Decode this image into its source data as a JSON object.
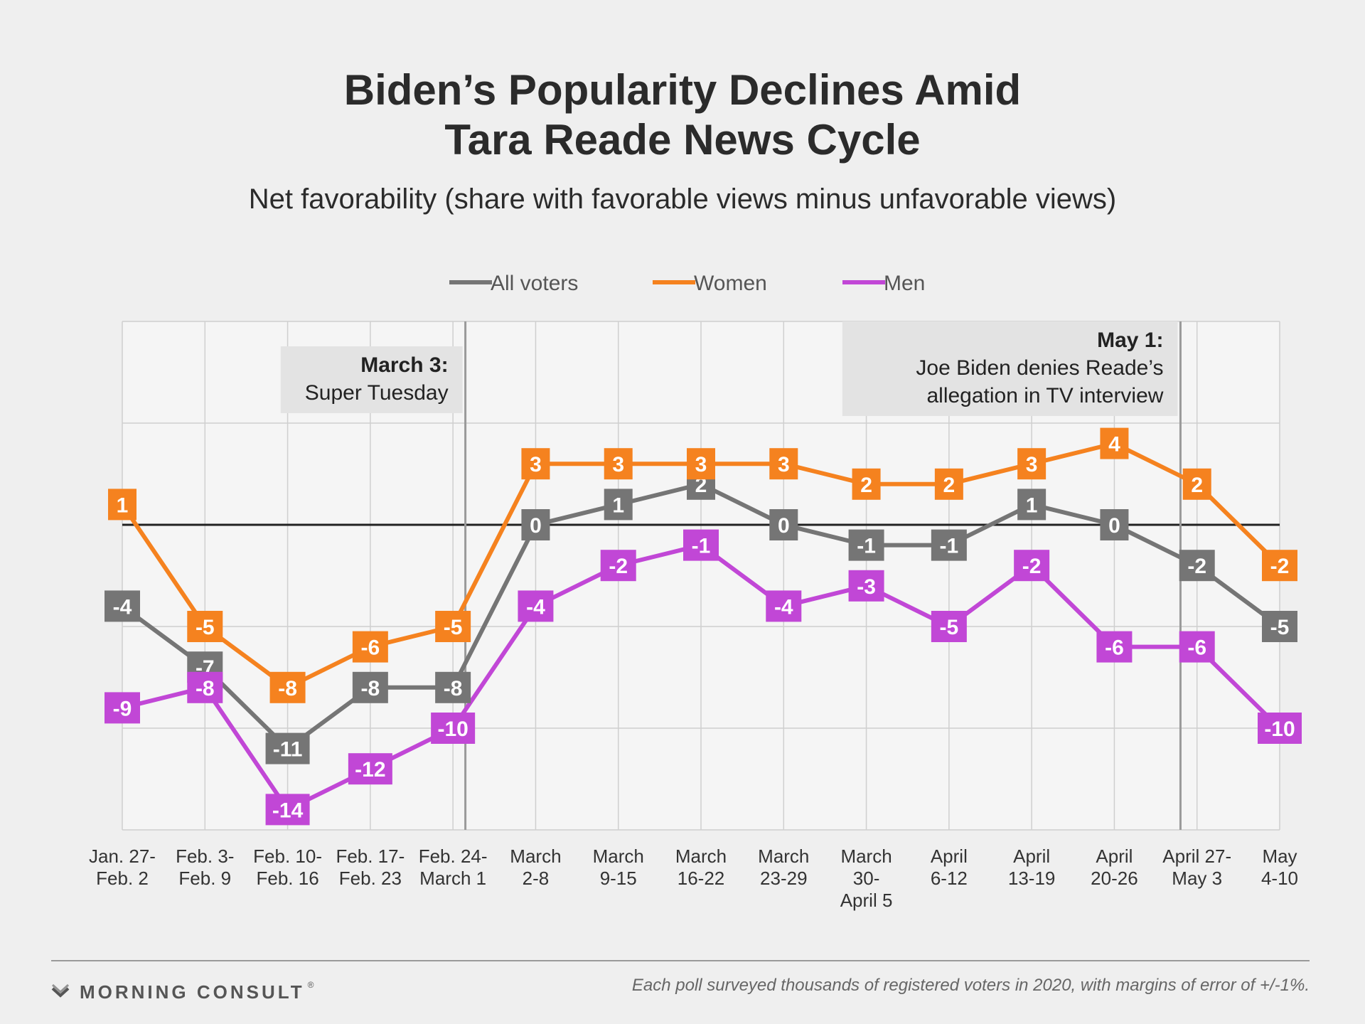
{
  "title_lines": [
    "Biden’s Popularity Declines Amid",
    "Tara Reade News Cycle"
  ],
  "subtitle": "Net favorability (share with favorable views minus unfavorable views)",
  "footer": {
    "brand": "MORNING CONSULT",
    "brand_mark": "®",
    "note": "Each poll surveyed thousands of registered voters in 2020, with margins of error of +/-1%."
  },
  "chart_data": {
    "type": "line",
    "title": "Biden’s Popularity Declines Amid Tara Reade News Cycle",
    "subtitle": "Net favorability (share with favorable views minus unfavorable views)",
    "x": [
      [
        "Jan. 27-",
        "Feb. 2"
      ],
      [
        "Feb. 3-",
        "Feb. 9"
      ],
      [
        "Feb. 10-",
        "Feb. 16"
      ],
      [
        "Feb. 17-",
        "Feb. 23"
      ],
      [
        "Feb. 24-",
        "March 1"
      ],
      [
        "March",
        "2-8"
      ],
      [
        "March",
        "9-15"
      ],
      [
        "March",
        "16-22"
      ],
      [
        "March",
        "23-29"
      ],
      [
        "March",
        "30-",
        "April 5"
      ],
      [
        "April",
        "6-12"
      ],
      [
        "April",
        "13-19"
      ],
      [
        "April",
        "20-26"
      ],
      [
        "April 27-",
        "May 3"
      ],
      [
        "May",
        "4-10"
      ]
    ],
    "series": [
      {
        "name": "All voters",
        "color": "#757575",
        "values": [
          -4,
          -7,
          -11,
          -8,
          -8,
          0,
          1,
          2,
          0,
          -1,
          -1,
          1,
          0,
          -2,
          -5
        ]
      },
      {
        "name": "Women",
        "color": "#f5821f",
        "values": [
          1,
          -5,
          -8,
          -6,
          -5,
          3,
          3,
          3,
          3,
          2,
          2,
          3,
          4,
          2,
          -2
        ]
      },
      {
        "name": "Men",
        "color": "#c147d6",
        "values": [
          -9,
          -8,
          -14,
          -12,
          -10,
          -4,
          -2,
          -1,
          -4,
          -3,
          -5,
          -2,
          -6,
          -6,
          -10
        ]
      }
    ],
    "ylim": [
      -15,
      10
    ],
    "zero_line": 0,
    "grid": true,
    "legend": "top-center",
    "annotations": [
      {
        "bold": "March 3:",
        "text": [
          "Super Tuesday"
        ],
        "date_index": 4.15
      },
      {
        "bold": "May 1:",
        "text": [
          "Joe Biden denies Reade’s",
          "allegation in TV interview"
        ],
        "date_index": 12.8
      }
    ]
  }
}
